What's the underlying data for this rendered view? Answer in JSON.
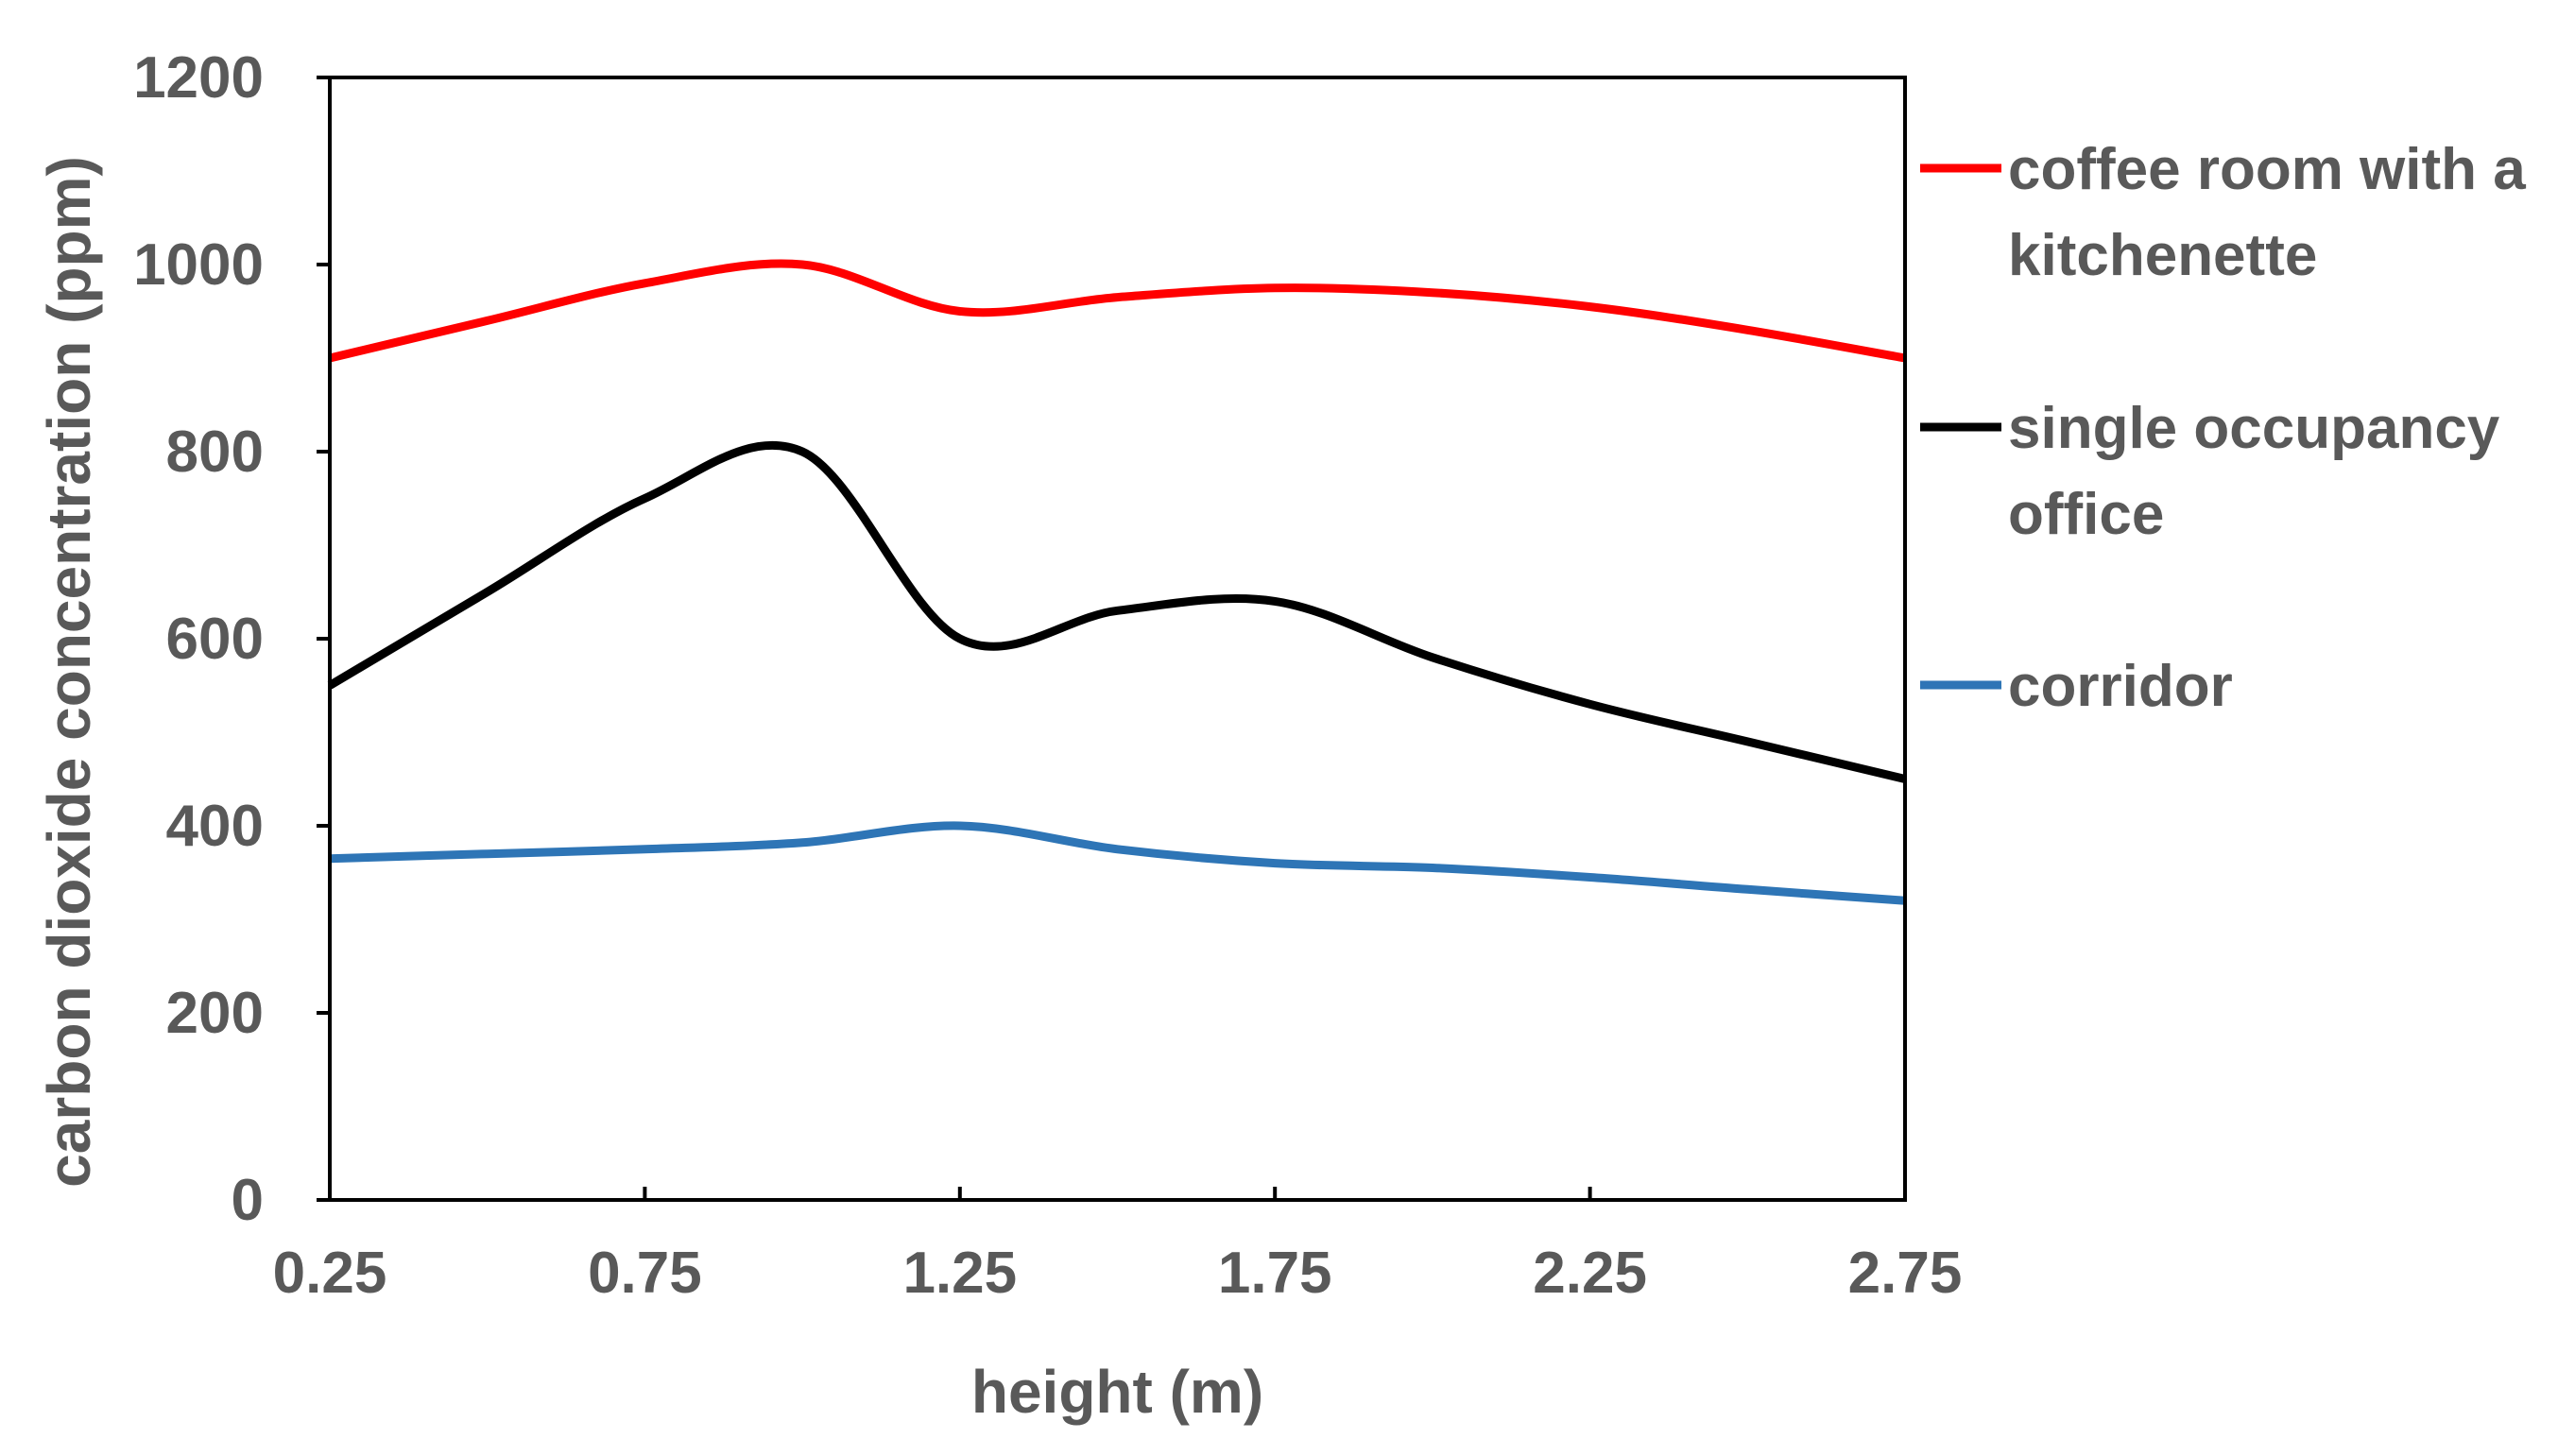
{
  "chart_data": {
    "type": "line",
    "title": "",
    "xlabel": "height (m)",
    "ylabel": "carbon dioxide concentration (ppm)",
    "xlim": [
      0.25,
      2.75
    ],
    "ylim": [
      0,
      1200
    ],
    "xticks": [
      "0.25",
      "0.75",
      "1.25",
      "1.75",
      "2.25",
      "2.75"
    ],
    "yticks": [
      "0",
      "200",
      "400",
      "600",
      "800",
      "1000",
      "1200"
    ],
    "grid": false,
    "legend_position": "right",
    "series": [
      {
        "name": "coffee room with a kitchenette",
        "legend_lines": [
          "coffee room with a",
          "kitchenette"
        ],
        "color": "#ff0000",
        "x": [
          0.25,
          0.5,
          0.75,
          1.0,
          1.25,
          1.5,
          1.75,
          2.0,
          2.25,
          2.5,
          2.75
        ],
        "y": [
          900,
          940,
          980,
          1000,
          950,
          965,
          975,
          970,
          955,
          930,
          900
        ]
      },
      {
        "name": "single occupancy office",
        "legend_lines": [
          "single occupancy",
          "office"
        ],
        "color": "#000000",
        "x": [
          0.25,
          0.5,
          0.75,
          1.0,
          1.25,
          1.5,
          1.75,
          2.0,
          2.25,
          2.5,
          2.75
        ],
        "y": [
          550,
          650,
          750,
          800,
          600,
          630,
          640,
          580,
          530,
          490,
          450
        ]
      },
      {
        "name": "corridor",
        "legend_lines": [
          "corridor"
        ],
        "color": "#2e75b6",
        "x": [
          0.25,
          0.5,
          0.75,
          1.0,
          1.25,
          1.5,
          1.75,
          2.0,
          2.25,
          2.5,
          2.75
        ],
        "y": [
          365,
          370,
          375,
          382,
          400,
          375,
          360,
          355,
          345,
          332,
          320
        ]
      }
    ]
  }
}
